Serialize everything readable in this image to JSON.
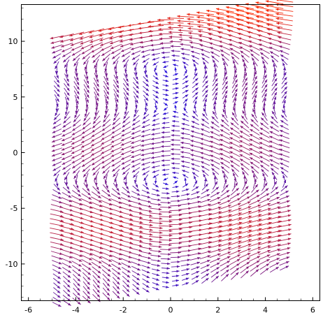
{
  "chart_data": {
    "type": "vector_field",
    "title": "",
    "xlabel": "",
    "ylabel": "",
    "xlim": [
      -6.3,
      6.3
    ],
    "ylim": [
      -13.3,
      13.3
    ],
    "x_ticks": [
      -6,
      -4,
      -2,
      0,
      2,
      4,
      6
    ],
    "x_tick_labels": [
      "-6",
      "-4",
      "-2",
      "0",
      "2",
      "4",
      "6"
    ],
    "y_ticks": [
      -10,
      -5,
      0,
      5,
      10
    ],
    "y_tick_labels": [
      "-10",
      "-5",
      "0",
      "5",
      "10"
    ],
    "field": {
      "description_of_data": "sheared rotational field",
      "vx": "-(cos(y/2)*2.2 + 0.25*y)",
      "vy": "2.4*sin(x*pi/6.3)",
      "shear_slope": 0.34,
      "x_extent": [
        -4.8,
        4.8
      ],
      "y_extent": [
        -12.0,
        12.0
      ],
      "grid_cols": 24,
      "grid_rows": 58,
      "color_low": "#1a0fe6",
      "color_high": "#ff2a00"
    }
  }
}
